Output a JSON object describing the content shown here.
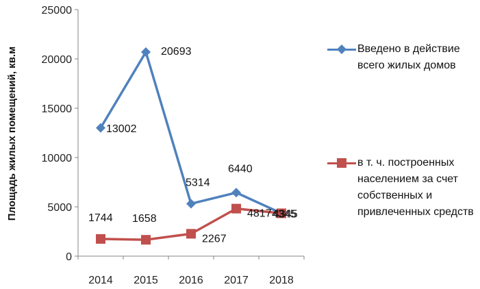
{
  "chart_data": {
    "type": "line",
    "categories": [
      "2014",
      "2015",
      "2016",
      "2017",
      "2018"
    ],
    "ylabel": "Площадь жилых помещений, кв.м",
    "ylim": [
      0,
      25000
    ],
    "yticks": [
      "0",
      "5000",
      "10000",
      "15000",
      "20000",
      "25000"
    ],
    "grid": false,
    "legend_position": "right",
    "series": [
      {
        "name": "Введено в действие всего жилых домов",
        "values": [
          13002,
          20693,
          5314,
          6440,
          4345
        ],
        "labels": [
          "13002",
          "20693",
          "5314",
          "6440",
          "4345"
        ],
        "color": "#4f81bd",
        "marker": "diamond"
      },
      {
        "name": "в т. ч. построенных населением за счет собственных и привлеченных средств",
        "values": [
          1744,
          1658,
          2267,
          4817,
          4345
        ],
        "labels": [
          "1744",
          "1658",
          "2267",
          "4817",
          "4345"
        ],
        "color": "#c0504d",
        "marker": "square"
      }
    ]
  }
}
